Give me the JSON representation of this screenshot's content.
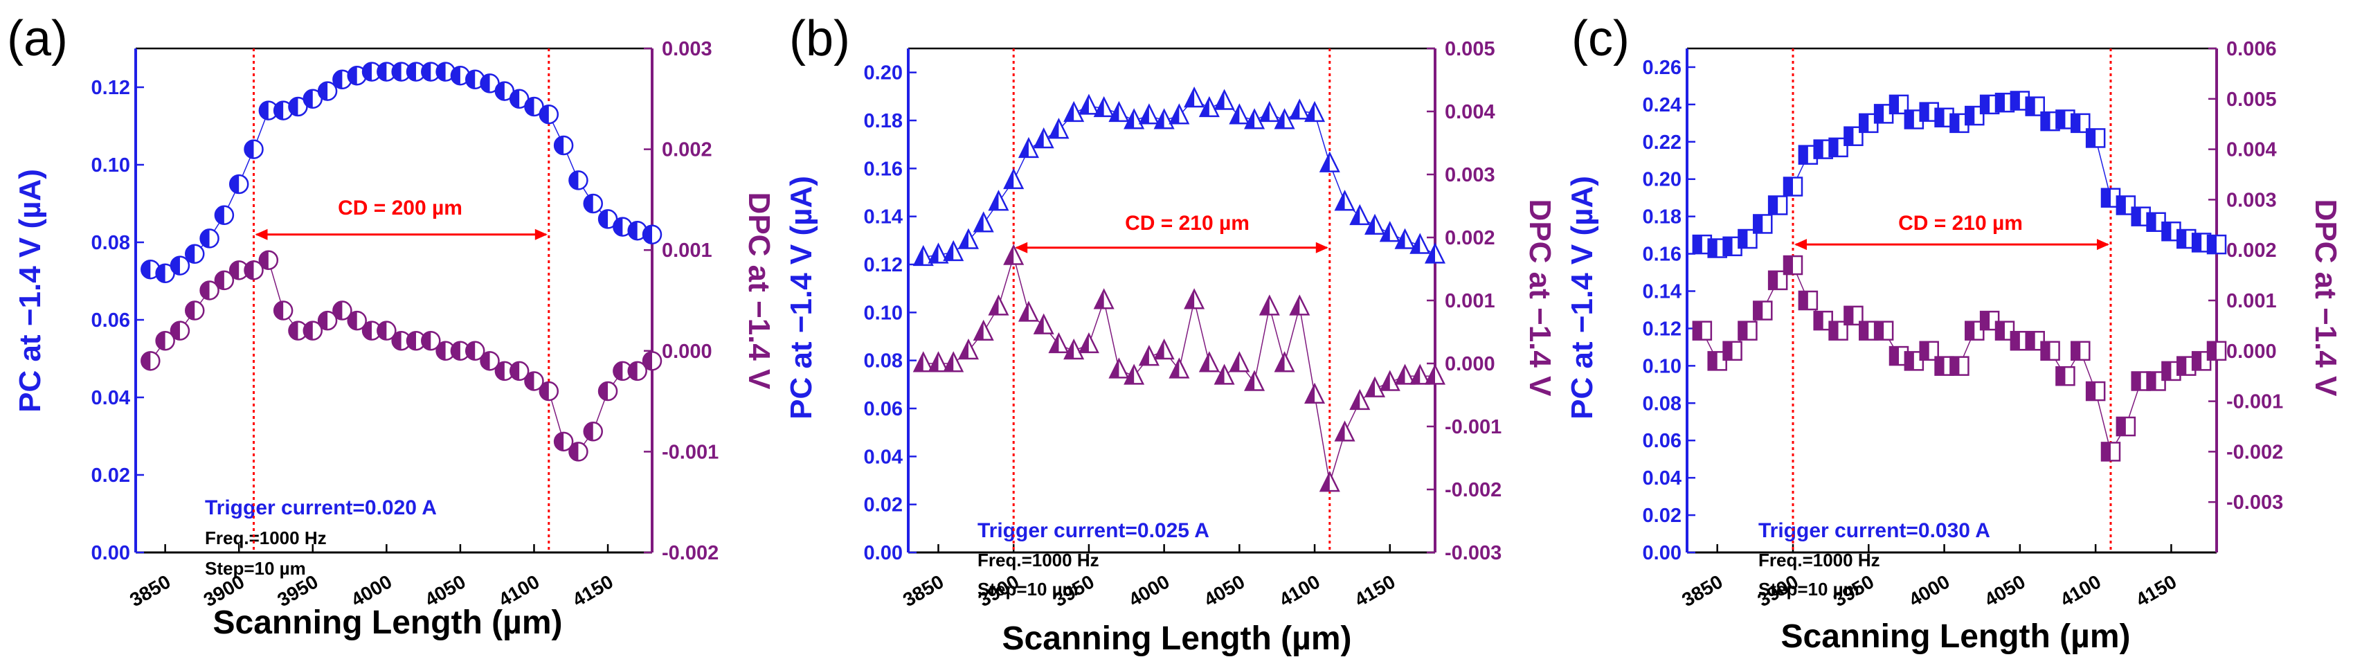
{
  "figure": {
    "scanning_label": "Scanning Length (µm)"
  },
  "chart_data": [
    {
      "type": "scatter",
      "panel_label": "(a)",
      "marker": "circle",
      "xlabel": "Scanning Length (µm)",
      "ylabel_left": "PC at −1.4 V (µA)",
      "ylabel_right": "DPC at −1.4 V",
      "xlim": [
        3830,
        4180
      ],
      "ylim_left": [
        0,
        0.13
      ],
      "ylim_right": [
        -0.002,
        0.003
      ],
      "xticks": [
        3850,
        3900,
        3950,
        4000,
        4050,
        4100,
        4150
      ],
      "yticks_left": [
        0.0,
        0.02,
        0.04,
        0.06,
        0.08,
        0.1,
        0.12
      ],
      "yticks_left_labels": [
        "0.00",
        "0.02",
        "0.04",
        "0.06",
        "0.08",
        "0.10",
        "0.12"
      ],
      "yticks_right": [
        -0.002,
        -0.001,
        0.0,
        0.001,
        0.002,
        0.003
      ],
      "yticks_right_labels": [
        "-0.002",
        "-0.001",
        "0.000",
        "0.001",
        "0.002",
        "0.003"
      ],
      "vlines": [
        3910,
        4110
      ],
      "cd_label": "CD = 200 µm",
      "cd_y": 0.082,
      "annotation_lines": [
        "Trigger current=0.020 A",
        "Freq.=1000 Hz",
        "Step=10 µm"
      ],
      "x": [
        3840,
        3850,
        3860,
        3870,
        3880,
        3890,
        3900,
        3910,
        3920,
        3930,
        3940,
        3950,
        3960,
        3970,
        3980,
        3990,
        4000,
        4010,
        4020,
        4030,
        4040,
        4050,
        4060,
        4070,
        4080,
        4090,
        4100,
        4110,
        4120,
        4130,
        4140,
        4150,
        4160,
        4170,
        4180
      ],
      "series": [
        {
          "name": "PC",
          "axis": "left",
          "color": "#1f1fe6",
          "values": [
            0.073,
            0.072,
            0.074,
            0.077,
            0.081,
            0.087,
            0.095,
            0.104,
            0.114,
            0.114,
            0.115,
            0.117,
            0.119,
            0.122,
            0.123,
            0.124,
            0.124,
            0.124,
            0.124,
            0.124,
            0.124,
            0.123,
            0.122,
            0.121,
            0.119,
            0.117,
            0.115,
            0.113,
            0.105,
            0.096,
            0.09,
            0.086,
            0.084,
            0.083,
            0.082
          ]
        },
        {
          "name": "DPC",
          "axis": "right",
          "color": "#7f1a7f",
          "values": [
            -0.0001,
            0.0001,
            0.0002,
            0.0004,
            0.0006,
            0.0007,
            0.0008,
            0.0008,
            0.0009,
            0.0004,
            0.0002,
            0.0002,
            0.0003,
            0.0004,
            0.0003,
            0.0002,
            0.0002,
            0.0001,
            0.0001,
            0.0001,
            0.0,
            0.0,
            0.0,
            -0.0001,
            -0.0002,
            -0.0002,
            -0.0003,
            -0.0004,
            -0.0009,
            -0.001,
            -0.0008,
            -0.0004,
            -0.0002,
            -0.0002,
            -0.0001
          ]
        }
      ]
    },
    {
      "type": "scatter",
      "panel_label": "(b)",
      "marker": "triangle",
      "xlabel": "Scanning Length (µm)",
      "ylabel_left": "PC at −1.4 V (µA)",
      "ylabel_right": "DPC at −1.4 V",
      "xlim": [
        3830,
        4180
      ],
      "ylim_left": [
        0,
        0.21
      ],
      "ylim_right": [
        -0.003,
        0.005
      ],
      "xticks": [
        3850,
        3900,
        3950,
        4000,
        4050,
        4100,
        4150
      ],
      "yticks_left": [
        0.0,
        0.02,
        0.04,
        0.06,
        0.08,
        0.1,
        0.12,
        0.14,
        0.16,
        0.18,
        0.2
      ],
      "yticks_left_labels": [
        "0.00",
        "0.02",
        "0.04",
        "0.06",
        "0.08",
        "0.10",
        "0.12",
        "0.14",
        "0.16",
        "0.18",
        "0.20"
      ],
      "yticks_right": [
        -0.003,
        -0.002,
        -0.001,
        0.0,
        0.001,
        0.002,
        0.003,
        0.004,
        0.005
      ],
      "yticks_right_labels": [
        "-0.003",
        "-0.002",
        "-0.001",
        "0.000",
        "0.001",
        "0.002",
        "0.003",
        "0.004",
        "0.005"
      ],
      "vlines": [
        3900,
        4110
      ],
      "cd_label": "CD = 210 µm",
      "cd_y": 0.127,
      "annotation_lines": [
        "Trigger current=0.025 A",
        "Freq.=1000 Hz",
        "Step=10 µm"
      ],
      "x": [
        3840,
        3850,
        3860,
        3870,
        3880,
        3890,
        3900,
        3910,
        3920,
        3930,
        3940,
        3950,
        3960,
        3970,
        3980,
        3990,
        4000,
        4010,
        4020,
        4030,
        4040,
        4050,
        4060,
        4070,
        4080,
        4090,
        4100,
        4110,
        4120,
        4130,
        4140,
        4150,
        4160,
        4170,
        4180
      ],
      "series": [
        {
          "name": "PC",
          "axis": "left",
          "color": "#1f1fe6",
          "values": [
            0.123,
            0.124,
            0.125,
            0.13,
            0.137,
            0.146,
            0.155,
            0.168,
            0.172,
            0.176,
            0.183,
            0.186,
            0.185,
            0.183,
            0.18,
            0.182,
            0.18,
            0.182,
            0.189,
            0.185,
            0.188,
            0.182,
            0.18,
            0.183,
            0.18,
            0.184,
            0.183,
            0.162,
            0.146,
            0.14,
            0.136,
            0.133,
            0.13,
            0.128,
            0.124
          ]
        },
        {
          "name": "DPC",
          "axis": "right",
          "color": "#7f1a7f",
          "values": [
            0.0,
            0.0,
            0.0,
            0.0002,
            0.0005,
            0.0009,
            0.0017,
            0.0008,
            0.0006,
            0.0003,
            0.0002,
            0.0003,
            0.001,
            -0.0001,
            -0.0002,
            0.0001,
            0.0002,
            -0.0001,
            0.001,
            0.0,
            -0.0002,
            0.0,
            -0.0003,
            0.0009,
            0.0,
            0.0009,
            -0.0005,
            -0.0019,
            -0.0011,
            -0.0006,
            -0.0004,
            -0.0003,
            -0.0002,
            -0.0002,
            -0.0002
          ]
        }
      ]
    },
    {
      "type": "scatter",
      "panel_label": "(c)",
      "marker": "square",
      "xlabel": "Scanning Length (µm)",
      "ylabel_left": "PC at −1.4 V (µA)",
      "ylabel_right": "DPC at −1.4 V",
      "xlim": [
        3830,
        4180
      ],
      "ylim_left": [
        0,
        0.27
      ],
      "ylim_right": [
        -0.004,
        0.006
      ],
      "xticks": [
        3850,
        3900,
        3950,
        4000,
        4050,
        4100,
        4150
      ],
      "yticks_left": [
        0.0,
        0.02,
        0.04,
        0.06,
        0.08,
        0.1,
        0.12,
        0.14,
        0.16,
        0.18,
        0.2,
        0.22,
        0.24,
        0.26
      ],
      "yticks_left_labels": [
        "0.00",
        "0.02",
        "0.04",
        "0.06",
        "0.08",
        "0.10",
        "0.12",
        "0.14",
        "0.16",
        "0.18",
        "0.20",
        "0.22",
        "0.24",
        "0.26"
      ],
      "yticks_right": [
        -0.003,
        -0.002,
        -0.001,
        0.0,
        0.001,
        0.002,
        0.003,
        0.004,
        0.005,
        0.006
      ],
      "yticks_right_labels": [
        "-0.003",
        "-0.002",
        "-0.001",
        "0.000",
        "0.001",
        "0.002",
        "0.003",
        "0.004",
        "0.005",
        "0.006"
      ],
      "vlines": [
        3900,
        4110
      ],
      "cd_label": "CD = 210 µm",
      "cd_y": 0.165,
      "annotation_lines": [
        "Trigger current=0.030 A",
        "Freq.=1000 Hz",
        "Step=10 µm"
      ],
      "x": [
        3840,
        3850,
        3860,
        3870,
        3880,
        3890,
        3900,
        3910,
        3920,
        3930,
        3940,
        3950,
        3960,
        3970,
        3980,
        3990,
        4000,
        4010,
        4020,
        4030,
        4040,
        4050,
        4060,
        4070,
        4080,
        4090,
        4100,
        4110,
        4120,
        4130,
        4140,
        4150,
        4160,
        4170,
        4180
      ],
      "series": [
        {
          "name": "PC",
          "axis": "left",
          "color": "#1f1fe6",
          "values": [
            0.165,
            0.163,
            0.164,
            0.168,
            0.176,
            0.186,
            0.196,
            0.213,
            0.216,
            0.217,
            0.223,
            0.23,
            0.235,
            0.24,
            0.232,
            0.236,
            0.233,
            0.23,
            0.234,
            0.24,
            0.241,
            0.242,
            0.239,
            0.231,
            0.232,
            0.23,
            0.222,
            0.19,
            0.186,
            0.18,
            0.177,
            0.172,
            0.168,
            0.166,
            0.165
          ]
        },
        {
          "name": "DPC",
          "axis": "right",
          "color": "#7f1a7f",
          "values": [
            0.0004,
            -0.0002,
            0.0,
            0.0004,
            0.0008,
            0.0014,
            0.0017,
            0.001,
            0.0006,
            0.0004,
            0.0007,
            0.0004,
            0.0004,
            -0.0001,
            -0.0002,
            0.0,
            -0.0003,
            -0.0003,
            0.0004,
            0.0006,
            0.0004,
            0.0002,
            0.0002,
            0.0,
            -0.0005,
            0.0,
            -0.0008,
            -0.002,
            -0.0015,
            -0.0006,
            -0.0006,
            -0.0004,
            -0.0003,
            -0.0002,
            0.0
          ]
        }
      ]
    }
  ]
}
